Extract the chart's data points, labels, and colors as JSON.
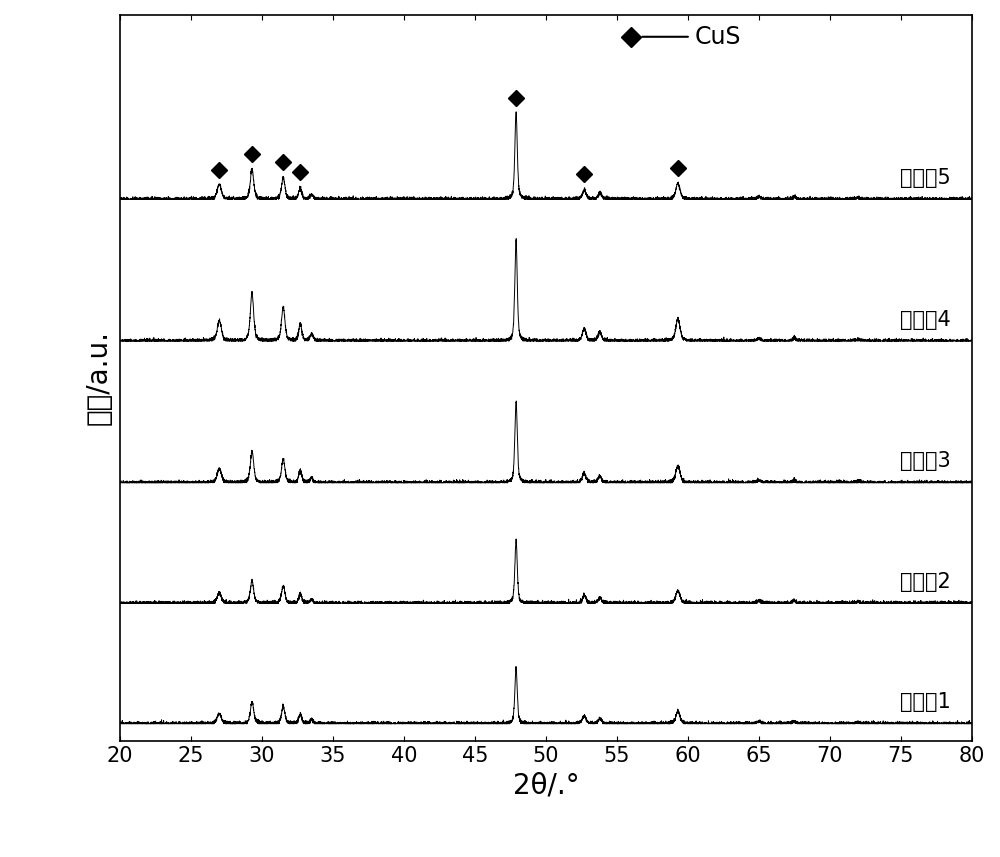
{
  "x_min": 20,
  "x_max": 80,
  "xlabel": "2θ/.°",
  "ylabel": "強度/a.u.",
  "background_color": "#ffffff",
  "tick_label_fontsize": 15,
  "axis_label_fontsize": 20,
  "legend_fontsize": 17,
  "label_fontsize": 15,
  "series_labels": [
    "实施入1",
    "实施入2",
    "实施入3",
    "实施入4",
    "实施入5"
  ],
  "offsets": [
    0.0,
    0.85,
    1.7,
    2.7,
    3.7
  ],
  "line_color": "#000000",
  "marker_color": "#000000",
  "diamond_positions": [
    27.0,
    29.3,
    31.5,
    32.7,
    47.9,
    52.7,
    59.3
  ]
}
